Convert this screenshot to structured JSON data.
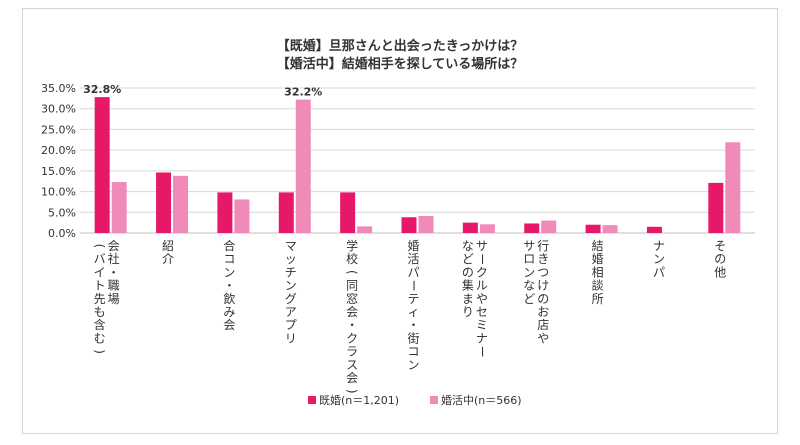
{
  "chart_data": {
    "type": "bar",
    "title_lines": [
      "【既婚】旦那さんと出会ったきっかけは？",
      "【婚活中】結婚相手を探している場所は？"
    ],
    "categories": [
      [
        "会社・職場",
        "(バイト先も含む)"
      ],
      [
        "紹介"
      ],
      [
        "合コン・飲み会"
      ],
      [
        "マッチングアプリ"
      ],
      [
        "学校(同窓会・クラス会)"
      ],
      [
        "婚活パーティ・街コン"
      ],
      [
        "サークルやセミナー",
        "などの集まり"
      ],
      [
        "行きつけのお店や",
        "サロンなど"
      ],
      [
        "結婚相談所"
      ],
      [
        "ナンパ"
      ],
      [
        "その他"
      ]
    ],
    "series": [
      {
        "name": "既婚(n＝1,201)",
        "color": "#e6186a",
        "values": [
          32.8,
          14.6,
          9.8,
          9.8,
          9.8,
          3.8,
          2.5,
          2.3,
          2.0,
          1.5,
          12.1
        ]
      },
      {
        "name": "婚活中(n＝566)",
        "color": "#f08ab8",
        "values": [
          12.3,
          13.8,
          8.1,
          32.2,
          1.6,
          4.1,
          2.1,
          3.0,
          1.9,
          0.0,
          21.9
        ]
      }
    ],
    "data_labels": [
      {
        "series": 0,
        "index": 0,
        "text": "32.8%"
      },
      {
        "series": 1,
        "index": 3,
        "text": "32.2%"
      }
    ],
    "yticks": [
      "0.0%",
      "5.0%",
      "10.0%",
      "15.0%",
      "20.0%",
      "25.0%",
      "30.0%",
      "35.0%"
    ],
    "ylim": [
      0,
      35
    ],
    "grid": true,
    "legend_position": "bottom-center"
  }
}
